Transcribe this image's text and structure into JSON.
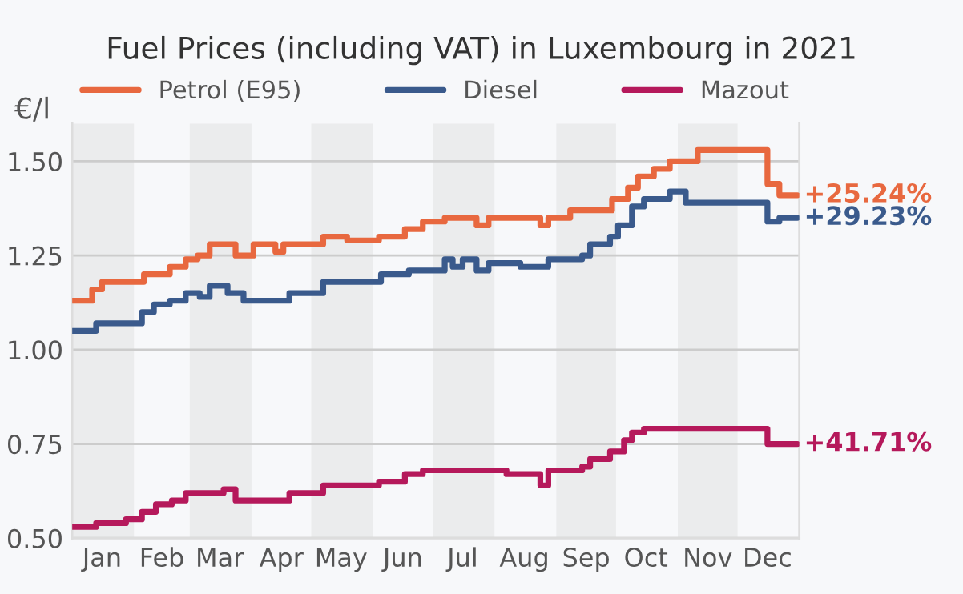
{
  "chart_data": {
    "type": "step",
    "title": "Fuel Prices (including VAT) in Luxembourg in 2021",
    "ylabel": "€/l",
    "series": [
      {
        "name": "Petrol (E95)",
        "color": "#e8683f",
        "x": [
          "2021-01-01",
          "2021-01-11",
          "2021-01-16",
          "2021-02-06",
          "2021-02-19",
          "2021-02-27",
          "2021-03-05",
          "2021-03-11",
          "2021-03-24",
          "2021-04-02",
          "2021-04-13",
          "2021-04-17",
          "2021-05-07",
          "2021-05-19",
          "2021-06-04",
          "2021-06-17",
          "2021-06-26",
          "2021-07-07",
          "2021-07-23",
          "2021-07-29",
          "2021-08-24",
          "2021-08-28",
          "2021-09-08",
          "2021-09-29",
          "2021-10-07",
          "2021-10-12",
          "2021-10-20",
          "2021-10-28",
          "2021-11-11",
          "2021-12-16",
          "2021-12-22",
          "2021-12-31"
        ],
        "values": [
          1.13,
          1.16,
          1.18,
          1.2,
          1.22,
          1.24,
          1.25,
          1.28,
          1.25,
          1.28,
          1.26,
          1.28,
          1.3,
          1.29,
          1.3,
          1.32,
          1.34,
          1.35,
          1.33,
          1.35,
          1.33,
          1.35,
          1.37,
          1.4,
          1.43,
          1.46,
          1.48,
          1.5,
          1.53,
          1.44,
          1.41,
          1.41
        ]
      },
      {
        "name": "Diesel",
        "color": "#3a5a8c",
        "x": [
          "2021-01-01",
          "2021-01-13",
          "2021-01-28",
          "2021-02-05",
          "2021-02-11",
          "2021-02-19",
          "2021-02-27",
          "2021-03-06",
          "2021-03-11",
          "2021-03-20",
          "2021-03-28",
          "2021-04-20",
          "2021-05-07",
          "2021-06-05",
          "2021-06-19",
          "2021-07-07",
          "2021-07-11",
          "2021-07-16",
          "2021-07-23",
          "2021-07-29",
          "2021-08-14",
          "2021-08-28",
          "2021-09-14",
          "2021-09-18",
          "2021-09-28",
          "2021-10-02",
          "2021-10-09",
          "2021-10-15",
          "2021-10-28",
          "2021-11-05",
          "2021-12-16",
          "2021-12-22",
          "2021-12-31"
        ],
        "values": [
          1.05,
          1.07,
          1.07,
          1.1,
          1.12,
          1.13,
          1.15,
          1.14,
          1.17,
          1.15,
          1.13,
          1.15,
          1.18,
          1.2,
          1.21,
          1.24,
          1.22,
          1.24,
          1.21,
          1.23,
          1.22,
          1.24,
          1.25,
          1.28,
          1.3,
          1.33,
          1.38,
          1.4,
          1.42,
          1.39,
          1.34,
          1.35,
          1.35
        ]
      },
      {
        "name": "Mazout",
        "color": "#b5195b",
        "x": [
          "2021-01-01",
          "2021-01-13",
          "2021-01-28",
          "2021-02-05",
          "2021-02-12",
          "2021-02-20",
          "2021-02-27",
          "2021-03-18",
          "2021-03-24",
          "2021-04-20",
          "2021-05-07",
          "2021-06-04",
          "2021-06-17",
          "2021-06-26",
          "2021-08-07",
          "2021-08-24",
          "2021-08-28",
          "2021-09-14",
          "2021-09-18",
          "2021-09-28",
          "2021-10-05",
          "2021-10-09",
          "2021-10-15",
          "2021-12-16",
          "2021-12-22",
          "2021-12-31"
        ],
        "values": [
          0.53,
          0.54,
          0.55,
          0.57,
          0.59,
          0.6,
          0.62,
          0.63,
          0.6,
          0.62,
          0.64,
          0.65,
          0.67,
          0.68,
          0.67,
          0.64,
          0.68,
          0.69,
          0.71,
          0.73,
          0.76,
          0.78,
          0.79,
          0.75,
          0.75,
          0.75
        ]
      }
    ],
    "xlim": [
      "2021-01-01",
      "2022-01-01"
    ],
    "xticks": [
      {
        "value": "2021-01-16",
        "label": "Jan"
      },
      {
        "value": "2021-02-15",
        "label": "Feb"
      },
      {
        "value": "2021-03-16",
        "label": "Mar"
      },
      {
        "value": "2021-04-16",
        "label": "Apr"
      },
      {
        "value": "2021-05-16",
        "label": "May"
      },
      {
        "value": "2021-06-16",
        "label": "Jun"
      },
      {
        "value": "2021-07-16",
        "label": "Jul"
      },
      {
        "value": "2021-08-16",
        "label": "Aug"
      },
      {
        "value": "2021-09-16",
        "label": "Sep"
      },
      {
        "value": "2021-10-16",
        "label": "Oct"
      },
      {
        "value": "2021-11-16",
        "label": "Nov"
      },
      {
        "value": "2021-12-16",
        "label": "Dec"
      }
    ],
    "ylim": [
      0.5,
      1.6
    ],
    "yticks": [
      {
        "value": 0.5,
        "label": "0.50"
      },
      {
        "value": 0.75,
        "label": "0.75"
      },
      {
        "value": 1.0,
        "label": "1.00"
      },
      {
        "value": 1.25,
        "label": "1.25"
      },
      {
        "value": 1.5,
        "label": "1.50"
      }
    ],
    "bands": [
      {
        "axis": "x",
        "from": "2021-01-01",
        "to": "2021-02-01",
        "color": "#ebeced"
      },
      {
        "axis": "x",
        "from": "2021-03-01",
        "to": "2021-04-01",
        "color": "#ebeced"
      },
      {
        "axis": "x",
        "from": "2021-05-01",
        "to": "2021-06-01",
        "color": "#ebeced"
      },
      {
        "axis": "x",
        "from": "2021-07-01",
        "to": "2021-08-01",
        "color": "#ebeced"
      },
      {
        "axis": "x",
        "from": "2021-09-01",
        "to": "2021-10-01",
        "color": "#ebeced"
      },
      {
        "axis": "x",
        "from": "2021-11-01",
        "to": "2021-12-01",
        "color": "#ebeced"
      }
    ],
    "annotations": [
      {
        "text": "+25.24%",
        "x": "2021-12-31",
        "y": 1.41
      },
      {
        "text": "+29.23%",
        "x": "2021-12-31",
        "y": 1.35
      },
      {
        "text": "+41.71%",
        "x": "2021-12-31",
        "y": 0.75
      }
    ],
    "grid": "y",
    "legend": "top",
    "line_style": "solid",
    "marker": "none"
  }
}
